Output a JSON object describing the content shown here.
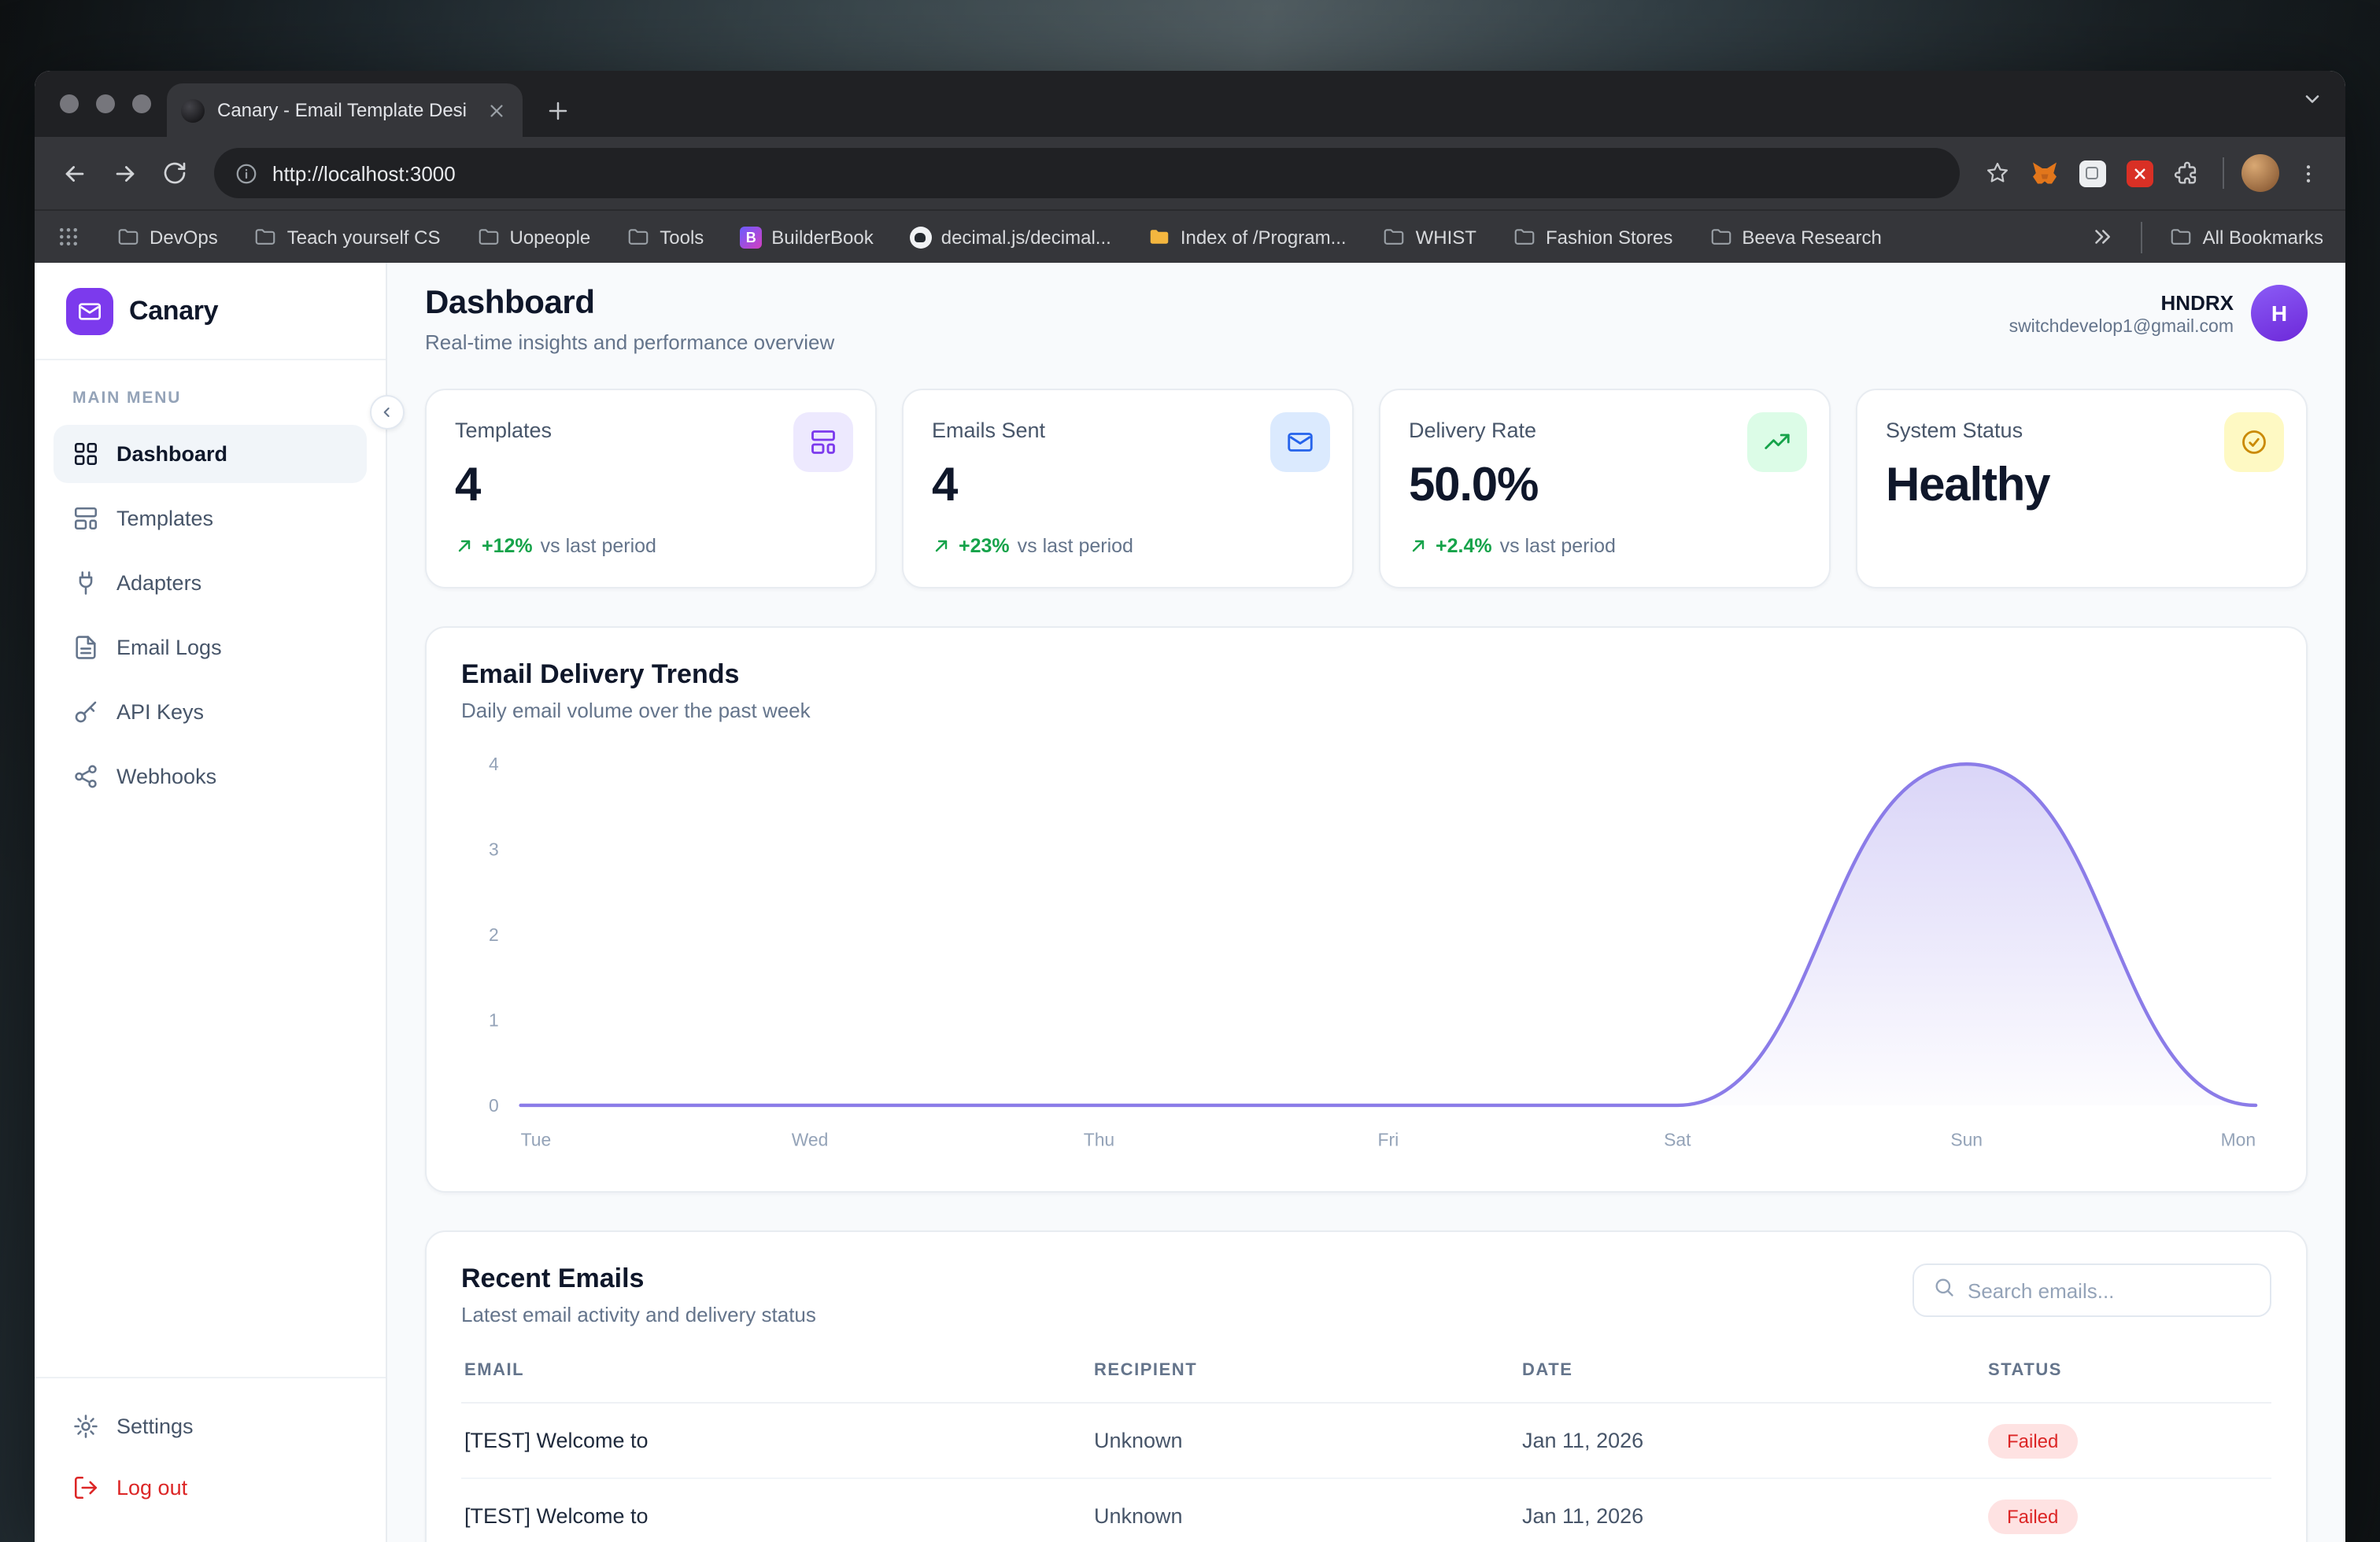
{
  "browser": {
    "tab": {
      "title": "Canary - Email Template Desi"
    },
    "address": {
      "url": "http://localhost:3000"
    },
    "bookmarks": {
      "items": [
        {
          "label": "DevOps",
          "icon": "folder-icon"
        },
        {
          "label": "Teach yourself CS",
          "icon": "folder-icon"
        },
        {
          "label": "Uopeople",
          "icon": "folder-icon"
        },
        {
          "label": "Tools",
          "icon": "folder-icon"
        },
        {
          "label": "BuilderBook",
          "icon": "builderbook-app-icon"
        },
        {
          "label": "decimal.js/decimal...",
          "icon": "github-icon"
        },
        {
          "label": "Index of /Program...",
          "icon": "folder-yellow-icon"
        },
        {
          "label": "WHIST",
          "icon": "folder-icon"
        },
        {
          "label": "Fashion Stores",
          "icon": "folder-icon"
        },
        {
          "label": "Beeva Research",
          "icon": "folder-icon"
        }
      ],
      "all_bookmarks_label": "All Bookmarks"
    }
  },
  "app": {
    "sidebar": {
      "brand": "Canary",
      "section_label": "MAIN MENU",
      "items": [
        {
          "label": "Dashboard",
          "icon": "grid-icon",
          "active": true
        },
        {
          "label": "Templates",
          "icon": "layout-template-icon",
          "active": false
        },
        {
          "label": "Adapters",
          "icon": "plug-icon",
          "active": false
        },
        {
          "label": "Email Logs",
          "icon": "file-text-icon",
          "active": false
        },
        {
          "label": "API Keys",
          "icon": "key-icon",
          "active": false
        },
        {
          "label": "Webhooks",
          "icon": "webhook-icon",
          "active": false
        }
      ],
      "settings_label": "Settings",
      "logout_label": "Log out"
    },
    "header": {
      "title": "Dashboard",
      "subtitle": "Real-time insights and performance overview",
      "user_name": "HNDRX",
      "user_email": "switchdevelop1@gmail.com",
      "avatar_initial": "H"
    },
    "stats": [
      {
        "label": "Templates",
        "value": "4",
        "delta": "+12%",
        "delta_note": "vs last period",
        "icon": "layout-template-icon",
        "accent": "#7c3aed"
      },
      {
        "label": "Emails Sent",
        "value": "4",
        "delta": "+23%",
        "delta_note": "vs last period",
        "icon": "mail-icon",
        "accent": "#2563eb"
      },
      {
        "label": "Delivery Rate",
        "value": "50.0%",
        "delta": "+2.4%",
        "delta_note": "vs last period",
        "icon": "trending-up-icon",
        "accent": "#16a34a"
      },
      {
        "label": "System Status",
        "value": "Healthy",
        "icon": "check-circle-icon",
        "accent": "#ca8a04"
      }
    ],
    "recent": {
      "title": "Recent Emails",
      "subtitle": "Latest email activity and delivery status",
      "search_placeholder": "Search emails...",
      "columns": [
        "EMAIL",
        "RECIPIENT",
        "DATE",
        "STATUS"
      ],
      "rows": [
        {
          "email": "[TEST] Welcome to",
          "recipient": "Unknown",
          "date": "Jan 11, 2026",
          "status": "Failed"
        },
        {
          "email": "[TEST] Welcome to",
          "recipient": "Unknown",
          "date": "Jan 11, 2026",
          "status": "Failed"
        }
      ]
    }
  },
  "chart_data": {
    "type": "area",
    "title": "Email Delivery Trends",
    "subtitle": "Daily email volume over the past week",
    "x": [
      "Tue",
      "Wed",
      "Thu",
      "Fri",
      "Sat",
      "Sun",
      "Mon"
    ],
    "values": [
      0,
      0,
      0,
      0,
      0,
      4,
      0
    ],
    "ylim": [
      0,
      4
    ],
    "yticks": [
      0,
      1,
      2,
      3,
      4
    ],
    "xlabel": "",
    "ylabel": "",
    "grid": false,
    "legend": false,
    "line_color": "#8b7ce8"
  }
}
